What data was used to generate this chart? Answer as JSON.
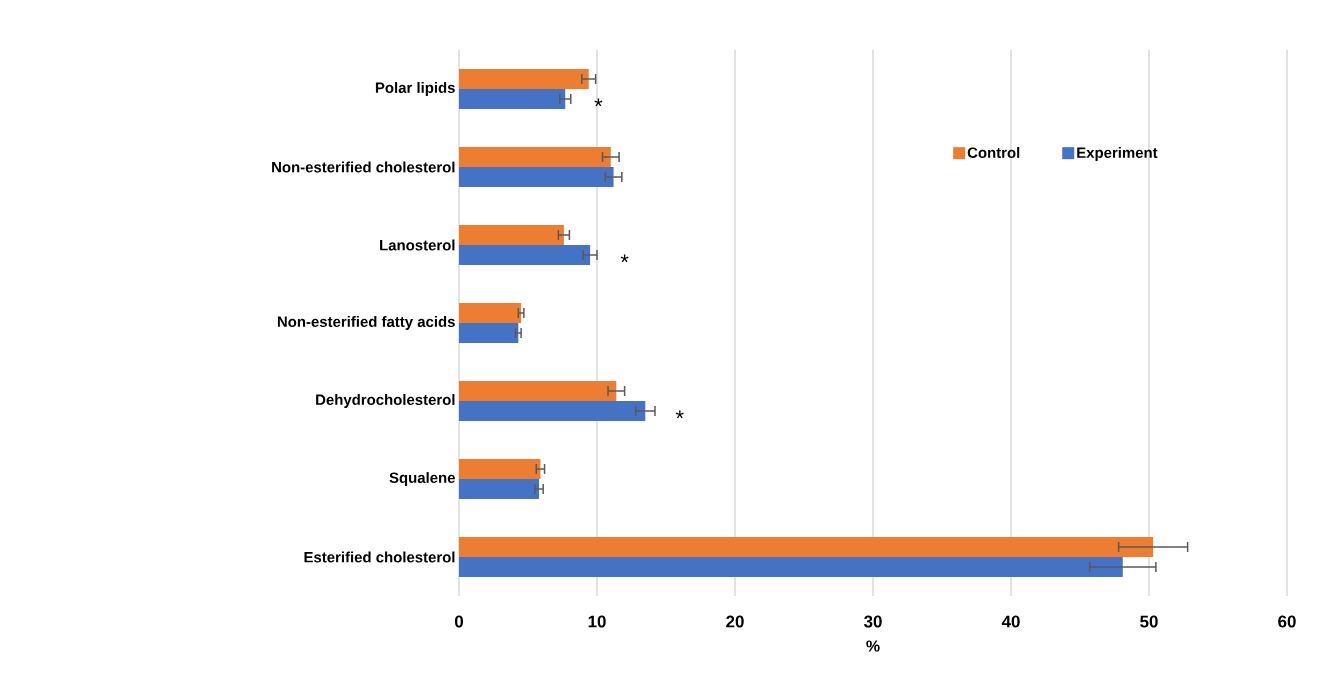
{
  "chart_data": {
    "type": "bar",
    "orientation": "horizontal",
    "xlabel": "%",
    "categories": [
      "Polar lipids",
      "Non-esterified cholesterol",
      "Lanosterol",
      "Non-esterified fatty acids",
      "Dehydrocholesterol",
      "Squalene",
      "Esterified cholesterol"
    ],
    "series": [
      {
        "name": "Control",
        "color": "#ed7d31",
        "values": [
          9.4,
          11.0,
          7.6,
          4.5,
          11.4,
          5.9,
          50.3
        ],
        "errors": [
          0.5,
          0.6,
          0.4,
          0.2,
          0.6,
          0.3,
          2.5
        ]
      },
      {
        "name": "Experiment",
        "color": "#4472c4",
        "values": [
          7.7,
          11.2,
          9.5,
          4.3,
          13.5,
          5.8,
          48.1
        ],
        "errors": [
          0.4,
          0.6,
          0.5,
          0.2,
          0.7,
          0.3,
          2.4
        ]
      }
    ],
    "xlim": [
      0,
      60
    ],
    "xticks": [
      0,
      10,
      20,
      30,
      40,
      50,
      60
    ],
    "grid": "x",
    "legend": "top right",
    "annotations": [
      "*",
      "*",
      "*"
    ]
  }
}
